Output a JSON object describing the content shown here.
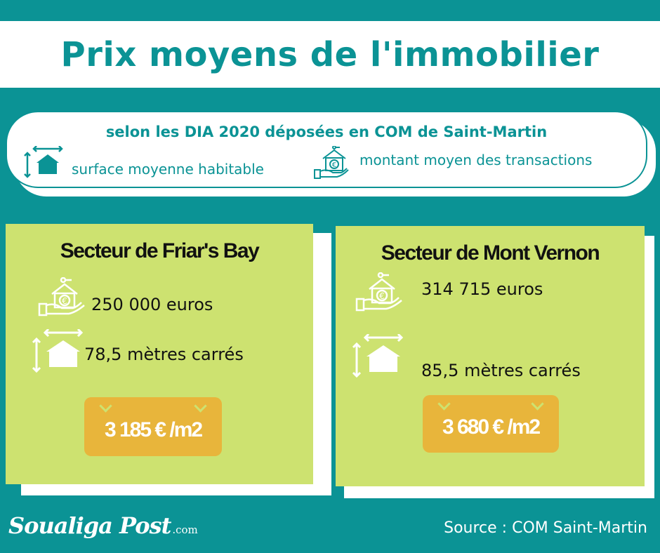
{
  "title": "Prix moyens de l'immobilier",
  "legend": {
    "subtitle": "selon les DIA 2020 déposées en COM de Saint-Martin",
    "surface_label": "surface moyenne habitable",
    "amount_label": "montant moyen des transactions",
    "surface_icon": "house-size-icon",
    "amount_icon": "hand-house-euro-icon"
  },
  "sectors": [
    {
      "name": "Secteur de Friar's Bay",
      "amount": "250 000 euros",
      "surface": "78,5 mètres carrés",
      "price_per_m2": "3 185 € /m2"
    },
    {
      "name": "Secteur de Mont Vernon",
      "amount": "314 715 euros",
      "surface": "85,5 mètres carrés",
      "price_per_m2": "3 680 € /m2"
    }
  ],
  "footer": {
    "logo_main": "Soualiga Post",
    "logo_suffix": ".com",
    "source": "Source : COM Saint-Martin"
  },
  "colors": {
    "background": "#0b9395",
    "card": "#cde270",
    "tag": "#e8b53b"
  }
}
